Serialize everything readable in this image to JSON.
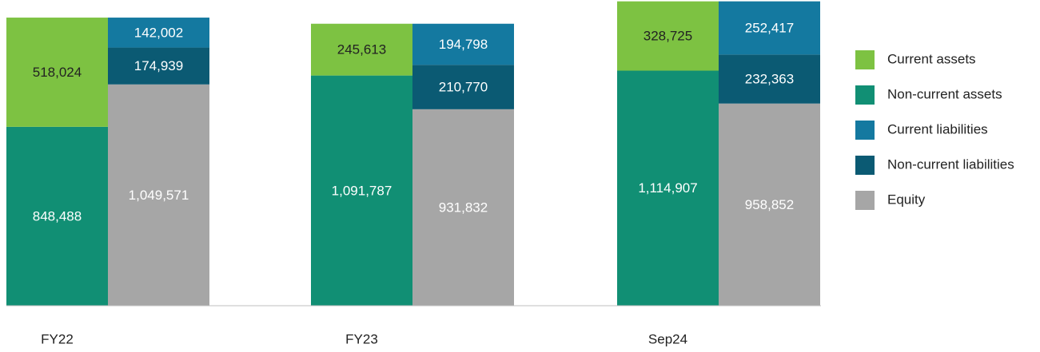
{
  "chart_data": {
    "type": "stacked-grouped-bar",
    "categories": [
      "FY22",
      "FY23",
      "Sep24"
    ],
    "ylim": [
      0,
      1450000
    ],
    "series": [
      {
        "name": "Current assets",
        "color": "#7dc242",
        "label_color": "#222222",
        "stack": 0,
        "values": [
          518024,
          245613,
          328725
        ],
        "value_labels": [
          "518,024",
          "245,613",
          "328,725"
        ]
      },
      {
        "name": "Non-current assets",
        "color": "#118f74",
        "label_color": "#ffffff",
        "stack": 0,
        "values": [
          848488,
          1091787,
          1114907
        ],
        "value_labels": [
          "848,488",
          "1,091,787",
          "1,114,907"
        ]
      },
      {
        "name": "Current liabilities",
        "color": "#1479a0",
        "label_color": "#ffffff",
        "stack": 1,
        "values": [
          142002,
          194798,
          252417
        ],
        "value_labels": [
          "142,002",
          "194,798",
          "252,417"
        ]
      },
      {
        "name": "Non-current liabilities",
        "color": "#0b5a73",
        "label_color": "#ffffff",
        "stack": 1,
        "values": [
          174939,
          210770,
          232363
        ],
        "value_labels": [
          "174,939",
          "210,770",
          "232,363"
        ]
      },
      {
        "name": "Equity",
        "color": "#a6a6a6",
        "label_color": "#ffffff",
        "stack": 1,
        "values": [
          1049571,
          931832,
          958852
        ],
        "value_labels": [
          "1,049,571",
          "931,832",
          "958,852"
        ]
      }
    ]
  }
}
